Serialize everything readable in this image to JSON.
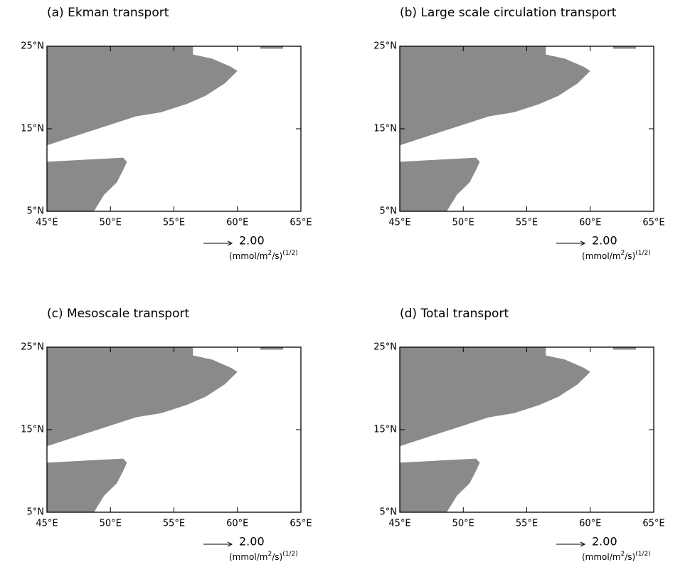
{
  "chart_data": [
    {
      "type": "vector",
      "title": "(a) Ekman transport",
      "xlim": [
        45,
        65
      ],
      "xticks": [
        {
          "value": 45,
          "label": "45°E"
        },
        {
          "value": 50,
          "label": "50°E"
        },
        {
          "value": 55,
          "label": "55°E"
        },
        {
          "value": 60,
          "label": "60°E"
        },
        {
          "value": 65,
          "label": "65°E"
        }
      ],
      "ylim": [
        5,
        25
      ],
      "yticks": [
        {
          "value": 5,
          "label": "5°N"
        },
        {
          "value": 15,
          "label": "15°N"
        },
        {
          "value": 25,
          "label": "25°N"
        }
      ],
      "reference_vector": {
        "value": 2,
        "label": "2.00"
      },
      "units": [
        "(mmol/m",
        "2",
        "/s)",
        "(1/2)"
      ]
    },
    {
      "type": "vector",
      "title": "(b) Large scale circulation transport",
      "xlim": [
        45,
        65
      ],
      "xticks": [
        {
          "value": 45,
          "label": "45°E"
        },
        {
          "value": 50,
          "label": "50°E"
        },
        {
          "value": 55,
          "label": "55°E"
        },
        {
          "value": 60,
          "label": "60°E"
        },
        {
          "value": 65,
          "label": "65°E"
        }
      ],
      "ylim": [
        5,
        25
      ],
      "yticks": [
        {
          "value": 5,
          "label": "5°N"
        },
        {
          "value": 15,
          "label": "15°N"
        },
        {
          "value": 25,
          "label": "25°N"
        }
      ],
      "reference_vector": {
        "value": 2,
        "label": "2.00"
      },
      "units": [
        "(mmol/m",
        "2",
        "/s)",
        "(1/2)"
      ]
    },
    {
      "type": "vector",
      "title": "(c) Mesoscale transport",
      "xlim": [
        45,
        65
      ],
      "xticks": [
        {
          "value": 45,
          "label": "45°E"
        },
        {
          "value": 50,
          "label": "50°E"
        },
        {
          "value": 55,
          "label": "55°E"
        },
        {
          "value": 60,
          "label": "60°E"
        },
        {
          "value": 65,
          "label": "65°E"
        }
      ],
      "ylim": [
        5,
        25
      ],
      "yticks": [
        {
          "value": 5,
          "label": "5°N"
        },
        {
          "value": 15,
          "label": "15°N"
        },
        {
          "value": 25,
          "label": "25°N"
        }
      ],
      "reference_vector": {
        "value": 2,
        "label": "2.00"
      },
      "units": [
        "(mmol/m",
        "2",
        "/s)",
        "(1/2)"
      ]
    },
    {
      "type": "vector",
      "title": "(d) Total transport",
      "xlim": [
        45,
        65
      ],
      "xticks": [
        {
          "value": 45,
          "label": "45°E"
        },
        {
          "value": 50,
          "label": "50°E"
        },
        {
          "value": 55,
          "label": "55°E"
        },
        {
          "value": 60,
          "label": "60°E"
        },
        {
          "value": 65,
          "label": "65°E"
        }
      ],
      "ylim": [
        5,
        25
      ],
      "yticks": [
        {
          "value": 5,
          "label": "5°N"
        },
        {
          "value": 15,
          "label": "15°N"
        },
        {
          "value": 25,
          "label": "25°N"
        }
      ],
      "reference_vector": {
        "value": 2,
        "label": "2.00"
      },
      "units": [
        "(mmol/m",
        "2",
        "/s)",
        "(1/2)"
      ]
    }
  ]
}
